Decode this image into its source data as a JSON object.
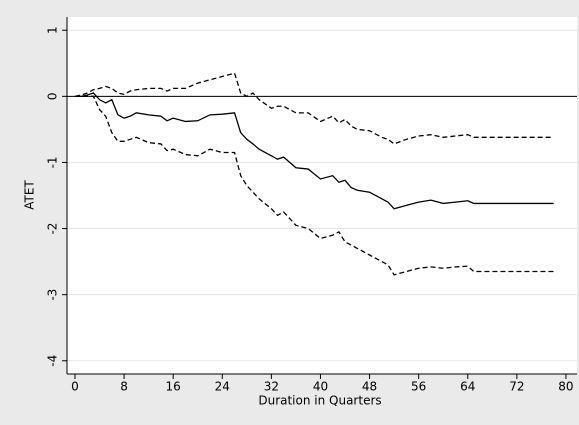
{
  "chart_data": {
    "type": "line",
    "xlabel": "Duration in Quarters",
    "ylabel": "ATET",
    "x": [
      0,
      1,
      2,
      3,
      4,
      5,
      6,
      7,
      8,
      9,
      10,
      12,
      14,
      15,
      16,
      18,
      20,
      22,
      24,
      26,
      27,
      28,
      29,
      30,
      32,
      33,
      34,
      36,
      38,
      40,
      42,
      43,
      44,
      45,
      46,
      48,
      50,
      51,
      52,
      54,
      56,
      58,
      60,
      62,
      64,
      65,
      66,
      78
    ],
    "series": [
      {
        "color": "#000000",
        "style": "solid",
        "values": [
          0,
          0,
          0.02,
          0.05,
          -0.05,
          -0.1,
          -0.05,
          -0.28,
          -0.33,
          -0.3,
          -0.25,
          -0.28,
          -0.3,
          -0.37,
          -0.33,
          -0.38,
          -0.37,
          -0.28,
          -0.27,
          -0.25,
          -0.55,
          -0.65,
          -0.72,
          -0.8,
          -0.9,
          -0.95,
          -0.92,
          -1.08,
          -1.1,
          -1.25,
          -1.2,
          -1.3,
          -1.27,
          -1.38,
          -1.42,
          -1.45,
          -1.55,
          -1.6,
          -1.7,
          -1.65,
          -1.6,
          -1.57,
          -1.62,
          -1.6,
          -1.58,
          -1.62,
          -1.62,
          -1.62
        ]
      },
      {
        "color": "#000000",
        "style": "dashed",
        "values": [
          0,
          0.02,
          0.05,
          0.1,
          0.12,
          0.15,
          0.12,
          0.05,
          0.03,
          0.08,
          0.1,
          0.12,
          0.12,
          0.08,
          0.12,
          0.12,
          0.2,
          0.25,
          0.3,
          0.35,
          0.05,
          0,
          0.05,
          -0.05,
          -0.18,
          -0.15,
          -0.15,
          -0.25,
          -0.25,
          -0.38,
          -0.3,
          -0.4,
          -0.35,
          -0.45,
          -0.5,
          -0.52,
          -0.62,
          -0.65,
          -0.72,
          -0.65,
          -0.6,
          -0.58,
          -0.62,
          -0.6,
          -0.58,
          -0.62,
          -0.62,
          -0.62
        ]
      },
      {
        "color": "#000000",
        "style": "dashed",
        "values": [
          0,
          0,
          0,
          0,
          -0.2,
          -0.3,
          -0.55,
          -0.68,
          -0.68,
          -0.65,
          -0.62,
          -0.7,
          -0.72,
          -0.82,
          -0.8,
          -0.88,
          -0.9,
          -0.8,
          -0.85,
          -0.85,
          -1.2,
          -1.35,
          -1.45,
          -1.55,
          -1.7,
          -1.8,
          -1.75,
          -1.95,
          -2.0,
          -2.15,
          -2.1,
          -2.05,
          -2.2,
          -2.25,
          -2.3,
          -2.4,
          -2.5,
          -2.55,
          -2.7,
          -2.65,
          -2.6,
          -2.58,
          -2.6,
          -2.58,
          -2.57,
          -2.65,
          -2.65,
          -2.65
        ]
      }
    ],
    "hline": 0,
    "xlim": [
      -1.3,
      81.8
    ],
    "ylim": [
      -4.2,
      1.2
    ],
    "xticks": [
      0,
      8,
      16,
      24,
      32,
      40,
      48,
      56,
      64,
      72,
      80
    ],
    "yticks": [
      -4,
      -3,
      -2,
      -1,
      0,
      1
    ],
    "grid": true
  }
}
